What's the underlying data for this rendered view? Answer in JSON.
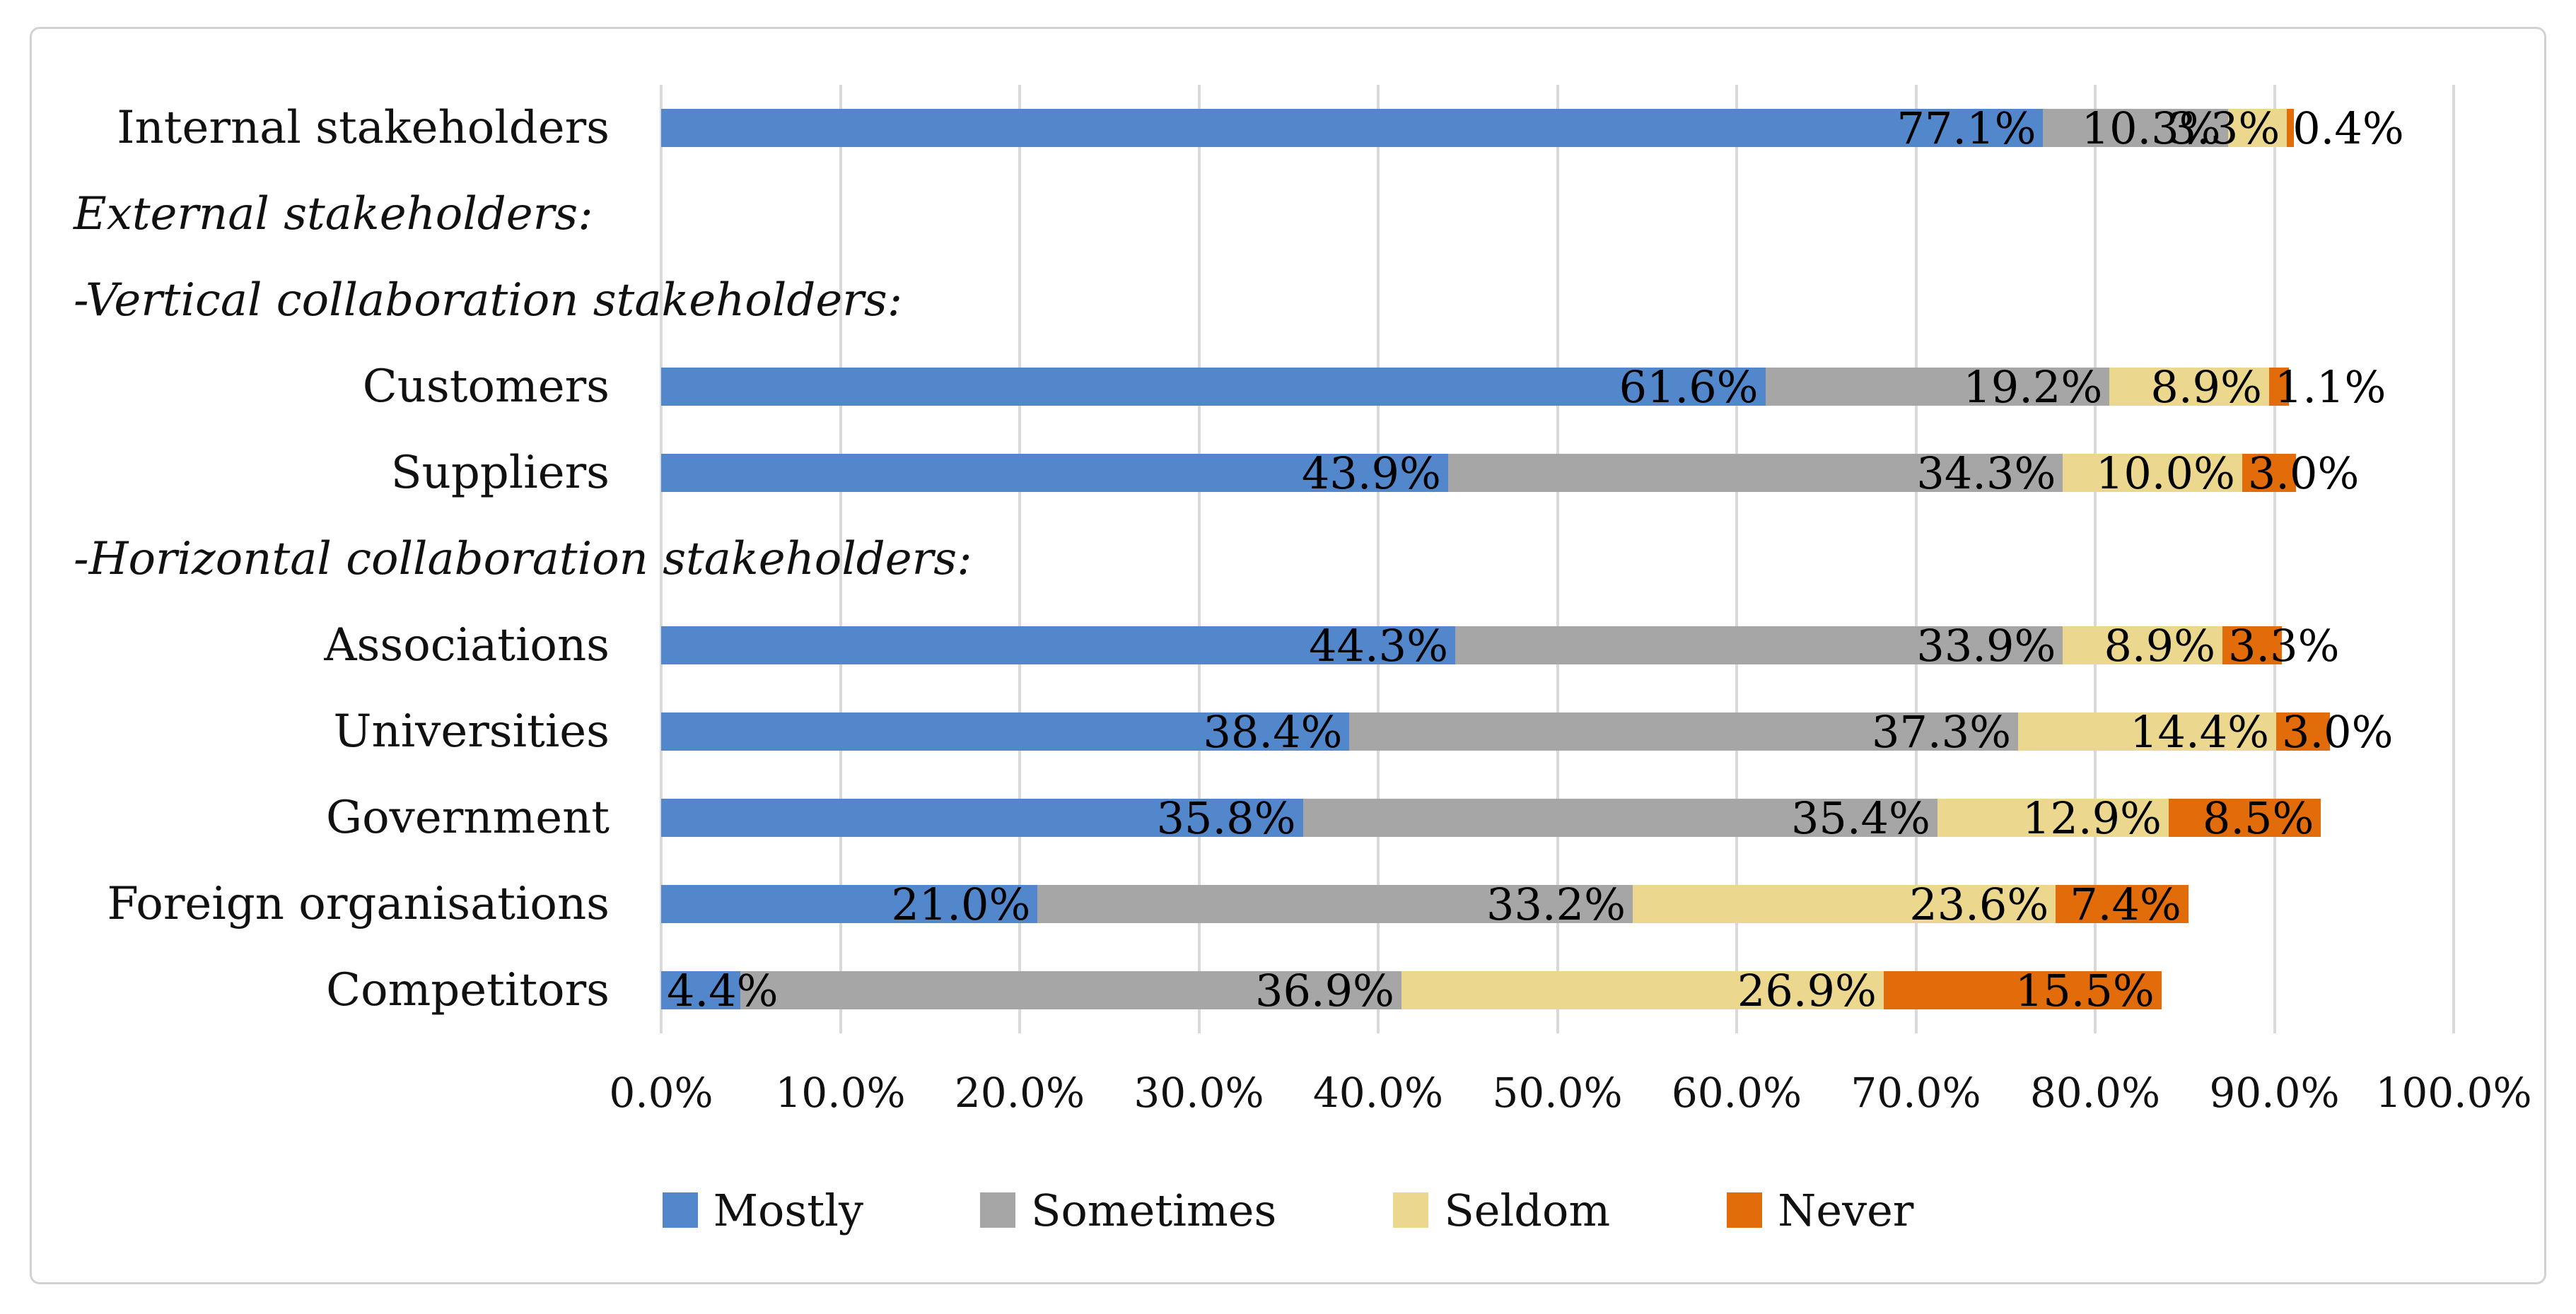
{
  "figure": {
    "background_color": "#ffffff",
    "border_color": "#d2d2d2",
    "gridline_color": "#d9d9d9",
    "text_color": "#111111"
  },
  "chart_data": {
    "type": "bar",
    "orientation": "horizontal",
    "stacked": true,
    "title": "",
    "xlabel": "",
    "ylabel": "",
    "xlim": [
      0,
      100
    ],
    "grid": true,
    "x_ticks": [
      "0.0%",
      "10.0%",
      "20.0%",
      "30.0%",
      "40.0%",
      "50.0%",
      "60.0%",
      "70.0%",
      "80.0%",
      "90.0%",
      "100.0%"
    ],
    "categories": [
      {
        "label": "Internal stakeholders",
        "italic": false,
        "header": false
      },
      {
        "label": "External stakeholders:",
        "italic": true,
        "header": true
      },
      {
        "label": "-Vertical collaboration stakeholders:",
        "italic": true,
        "header": true
      },
      {
        "label": "Customers",
        "italic": false,
        "header": false
      },
      {
        "label": "Suppliers",
        "italic": false,
        "header": false
      },
      {
        "label": "-Horizontal collaboration stakeholders:",
        "italic": true,
        "header": true
      },
      {
        "label": "Associations",
        "italic": false,
        "header": false
      },
      {
        "label": "Universities",
        "italic": false,
        "header": false
      },
      {
        "label": "Government",
        "italic": false,
        "header": false
      },
      {
        "label": "Foreign organisations",
        "italic": false,
        "header": false
      },
      {
        "label": "Competitors",
        "italic": false,
        "header": false
      }
    ],
    "series": [
      {
        "name": "Mostly",
        "color": "#5287cb",
        "values": [
          77.1,
          null,
          null,
          61.6,
          43.9,
          null,
          44.3,
          38.4,
          35.8,
          21.0,
          4.4
        ],
        "label_pos": [
          "end",
          null,
          null,
          "end",
          "end",
          null,
          "end",
          "end",
          "end",
          "end",
          "start"
        ]
      },
      {
        "name": "Sometimes",
        "color": "#a6a6a6",
        "values": [
          10.3,
          null,
          null,
          19.2,
          34.3,
          null,
          33.9,
          37.3,
          35.4,
          33.2,
          36.9
        ],
        "label_pos": [
          "end",
          null,
          null,
          "end",
          "end",
          null,
          "end",
          "end",
          "end",
          "end",
          "end"
        ]
      },
      {
        "name": "Seldom",
        "color": "#ecd78e",
        "values": [
          3.3,
          null,
          null,
          8.9,
          10.0,
          null,
          8.9,
          14.4,
          12.9,
          23.6,
          26.9
        ],
        "label_pos": [
          "end",
          null,
          null,
          "end",
          "end",
          null,
          "end",
          "end",
          "end",
          "end",
          "end"
        ]
      },
      {
        "name": "Never",
        "color": "#e26b0a",
        "values": [
          0.4,
          null,
          null,
          1.1,
          3.0,
          null,
          3.3,
          3.0,
          8.5,
          7.4,
          15.5
        ],
        "label_pos": [
          "start",
          null,
          null,
          "start",
          "start",
          null,
          "start",
          "start",
          "end",
          "end",
          "end"
        ]
      }
    ],
    "value_label_suffix": "%",
    "value_label_decimals": 1,
    "legend": {
      "position": "bottom",
      "entries": [
        "Mostly",
        "Sometimes",
        "Seldom",
        "Never"
      ]
    }
  }
}
